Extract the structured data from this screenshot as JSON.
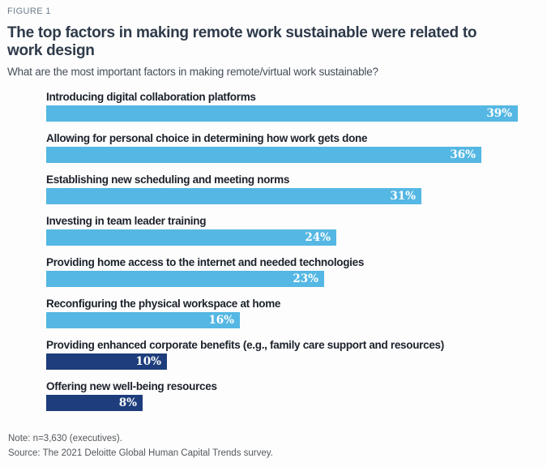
{
  "figure_label": "FIGURE 1",
  "title_line1": "The top factors in making remote work sustainable were related to",
  "title_line2": "work design",
  "subtitle": "What are the most important factors in making remote/virtual work sustainable?",
  "note": "Note: n=3,630 (executives).",
  "source": "Source: The 2021 Deloitte Global Human Capital Trends survey.",
  "colors": {
    "light_blue": "#55B7E3",
    "navy": "#1D3D7C",
    "figure_label": "#6E7B8B",
    "title": "#2E3A4A",
    "subtitle": "#454D58",
    "bar_label": "#1C212B",
    "footnote": "#53575C",
    "value_text": "#FFFFFF"
  },
  "chart_data": {
    "type": "bar",
    "orientation": "horizontal",
    "title": "The top factors in making remote work sustainable were related to work design",
    "subtitle": "What are the most important factors in making remote/virtual work sustainable?",
    "categories": [
      "Introducing digital collaboration platforms",
      "Allowing for personal choice in determining how work gets done",
      "Establishing new scheduling and meeting norms",
      "Investing in team leader training",
      "Providing home access to the internet and needed technologies",
      "Reconfiguring the physical workspace at home",
      "Providing enhanced corporate benefits (e.g., family care support and resources)",
      "Offering new well-being resources"
    ],
    "values": [
      39,
      36,
      31,
      24,
      23,
      16,
      10,
      8
    ],
    "unit": "%",
    "bar_colors": [
      "light_blue",
      "light_blue",
      "light_blue",
      "light_blue",
      "light_blue",
      "light_blue",
      "navy",
      "navy"
    ],
    "value_labels": [
      "39%",
      "36%",
      "31%",
      "24%",
      "23%",
      "16%",
      "10%",
      "8%"
    ],
    "xlim": [
      0,
      40
    ],
    "grid": false,
    "legend": false,
    "data_labels_position": "inside-end"
  }
}
